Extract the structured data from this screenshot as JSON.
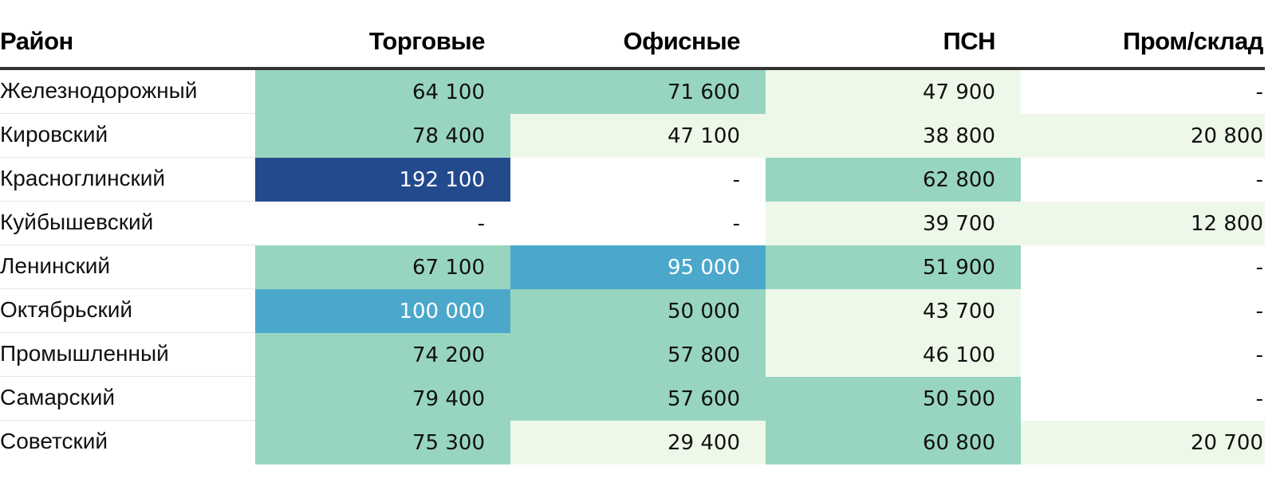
{
  "chart_data": {
    "type": "table",
    "columns": [
      "Район",
      "Торговые",
      "Офисные",
      "ПСН",
      "Пром/склад"
    ],
    "rows": [
      {
        "district": "Железнодорожный",
        "values": [
          "64 100",
          "71 600",
          "47 900",
          "-"
        ]
      },
      {
        "district": "Кировский",
        "values": [
          "78 400",
          "47 100",
          "38 800",
          "20 800"
        ]
      },
      {
        "district": "Красноглинский",
        "values": [
          "192 100",
          "-",
          "62 800",
          "-"
        ]
      },
      {
        "district": "Куйбышевский",
        "values": [
          "-",
          "-",
          "39 700",
          "12 800"
        ]
      },
      {
        "district": "Ленинский",
        "values": [
          "67 100",
          "95 000",
          "51 900",
          "-"
        ]
      },
      {
        "district": "Октябрьский",
        "values": [
          "100 000",
          "50 000",
          "43 700",
          "-"
        ]
      },
      {
        "district": "Промышленный",
        "values": [
          "74 200",
          "57 800",
          "46 100",
          "-"
        ]
      },
      {
        "district": "Самарский",
        "values": [
          "79 400",
          "57 600",
          "50 500",
          "-"
        ]
      },
      {
        "district": "Советский",
        "values": [
          "75 300",
          "29 400",
          "60 800",
          "20 700"
        ]
      }
    ]
  },
  "colors": {
    "empty": "#ffffff",
    "low": "#eef8e8",
    "mid": "#98d5c0",
    "high": "#4ba8cb",
    "top": "#234a8c",
    "text_dark": "#111111",
    "text_light": "#ffffff"
  }
}
